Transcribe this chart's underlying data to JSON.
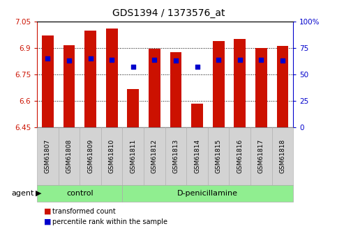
{
  "title": "GDS1394 / 1373576_at",
  "categories": [
    "GSM61807",
    "GSM61808",
    "GSM61809",
    "GSM61810",
    "GSM61811",
    "GSM61812",
    "GSM61813",
    "GSM61814",
    "GSM61815",
    "GSM61816",
    "GSM61817",
    "GSM61818"
  ],
  "bar_values": [
    6.97,
    6.915,
    7.0,
    7.01,
    6.665,
    6.895,
    6.875,
    6.585,
    6.94,
    6.95,
    6.9,
    6.91
  ],
  "bar_bottom": 6.45,
  "blue_dot_values_pct": [
    65,
    63,
    65,
    64,
    57,
    64,
    63,
    57,
    64,
    64,
    64,
    63
  ],
  "ylim_left": [
    6.45,
    7.05
  ],
  "ylim_right": [
    0,
    100
  ],
  "yticks_left": [
    6.45,
    6.6,
    6.75,
    6.9,
    7.05
  ],
  "ytick_labels_left": [
    "6.45",
    "6.6",
    "6.75",
    "6.9",
    "7.05"
  ],
  "yticks_right": [
    0,
    25,
    50,
    75,
    100
  ],
  "ytick_labels_right": [
    "0",
    "25",
    "50",
    "75",
    "100%"
  ],
  "bar_color": "#cc1100",
  "dot_color": "#0000cc",
  "control_count": 4,
  "control_label": "control",
  "treatment_label": "D-penicillamine",
  "agent_label": "agent",
  "legend_entries": [
    "transformed count",
    "percentile rank within the sample"
  ],
  "bg_color": "#ffffff",
  "group_bg": "#90ee90",
  "tick_label_bg": "#d3d3d3",
  "bar_width": 0.55
}
